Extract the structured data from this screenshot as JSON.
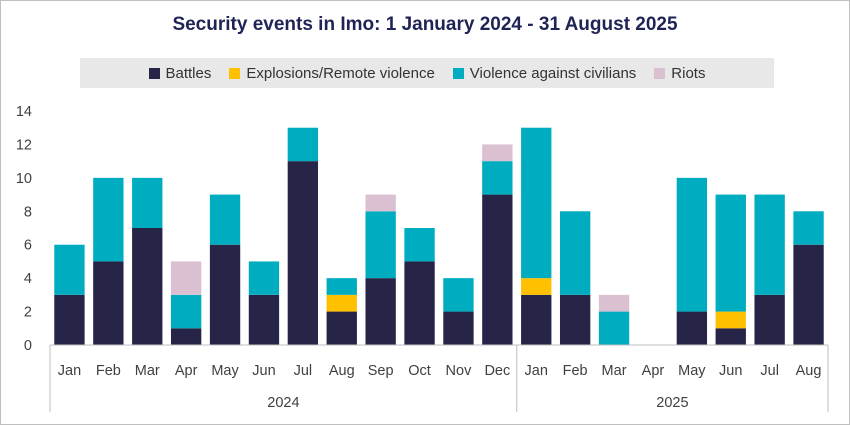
{
  "chart_data": {
    "type": "bar",
    "stacked": true,
    "title": "Security events in Imo: 1 January 2024 - 31 August 2025",
    "ylim": [
      0,
      14
    ],
    "yticks": [
      0,
      2,
      4,
      6,
      8,
      10,
      12,
      14
    ],
    "categories": [
      "Jan",
      "Feb",
      "Mar",
      "Apr",
      "May",
      "Jun",
      "Jul",
      "Aug",
      "Sep",
      "Oct",
      "Nov",
      "Dec",
      "Jan",
      "Feb",
      "Mar",
      "Apr",
      "May",
      "Jun",
      "Jul",
      "Aug"
    ],
    "groups": [
      {
        "label": "2024",
        "start": 0,
        "end": 11
      },
      {
        "label": "2025",
        "start": 12,
        "end": 19
      }
    ],
    "series": [
      {
        "name": "Battles",
        "color": "#262547",
        "values": [
          3,
          5,
          7,
          1,
          6,
          3,
          11,
          2,
          4,
          5,
          2,
          9,
          3,
          3,
          0,
          0,
          2,
          1,
          3,
          6
        ]
      },
      {
        "name": "Explosions/Remote violence",
        "color": "#ffc000",
        "values": [
          0,
          0,
          0,
          0,
          0,
          0,
          0,
          1,
          0,
          0,
          0,
          0,
          1,
          0,
          0,
          0,
          0,
          1,
          0,
          0
        ]
      },
      {
        "name": "Violence against civilians",
        "color": "#00adc0",
        "values": [
          3,
          5,
          3,
          2,
          3,
          2,
          2,
          1,
          4,
          2,
          2,
          2,
          9,
          5,
          2,
          0,
          8,
          7,
          6,
          2
        ]
      },
      {
        "name": "Riots",
        "color": "#dac0d1",
        "values": [
          0,
          0,
          0,
          2,
          0,
          0,
          0,
          0,
          1,
          0,
          0,
          1,
          0,
          0,
          1,
          0,
          0,
          0,
          0,
          0
        ]
      }
    ]
  }
}
